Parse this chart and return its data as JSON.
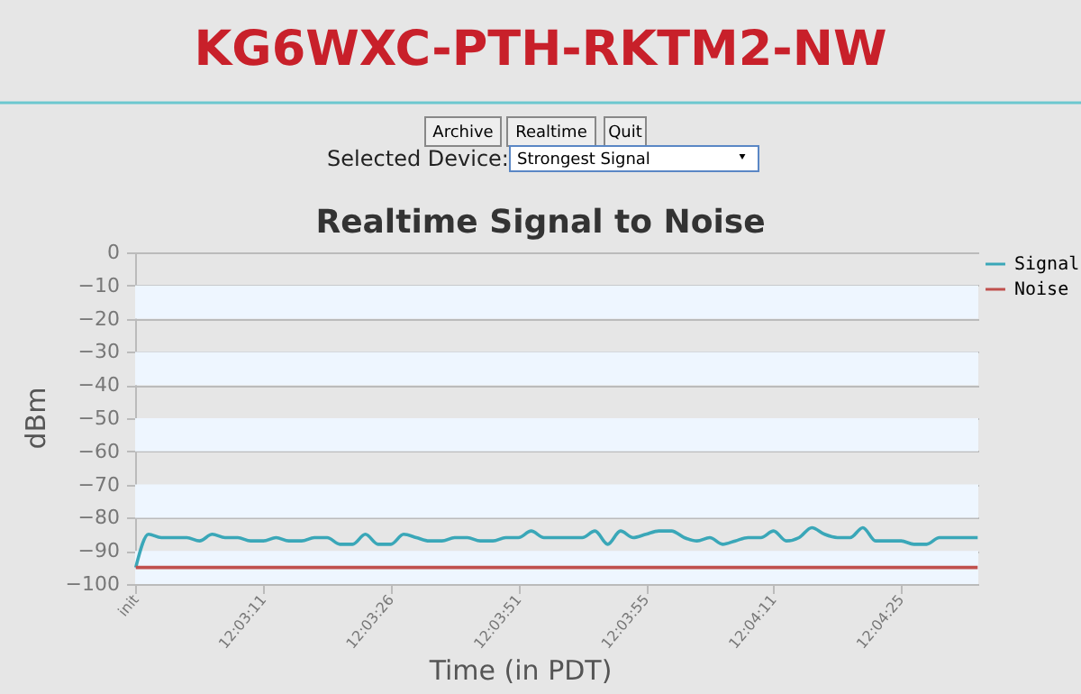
{
  "chart_data": {
    "type": "line",
    "title": "Realtime Signal to Noise",
    "xlabel": "Time (in PDT)",
    "ylabel": "dBm",
    "annotations": [
      "KG6WXC-PTH-RKTM2-NW",
      "Archive",
      "Realtime",
      "Quit",
      "Selected Device:",
      "Strongest Signal"
    ],
    "categories": [
      "init",
      null,
      null,
      null,
      null,
      null,
      null,
      null,
      null,
      null,
      "12:03:11",
      null,
      null,
      null,
      null,
      null,
      null,
      null,
      null,
      null,
      "12:03:26",
      null,
      null,
      null,
      null,
      null,
      null,
      null,
      null,
      null,
      "12:03:51",
      null,
      null,
      null,
      null,
      null,
      null,
      null,
      null,
      null,
      "12:03:55",
      null,
      null,
      null,
      null,
      null,
      null,
      null,
      null,
      null,
      "12:04:11",
      null,
      null,
      null,
      null,
      null,
      null,
      null,
      null,
      null,
      "12:04:25",
      null,
      null,
      null,
      null,
      null,
      null
    ],
    "series": [
      {
        "name": "Signal",
        "color": "#3aa7b8",
        "values": [
          -95,
          -85,
          -86,
          -86,
          -86,
          -87,
          -85,
          -86,
          -86,
          -87,
          -87,
          -86,
          -87,
          -87,
          -86,
          -86,
          -88,
          -88,
          -85,
          -88,
          -88,
          -85,
          -86,
          -87,
          -87,
          -86,
          -86,
          -87,
          -87,
          -86,
          -86,
          -84,
          -86,
          -86,
          -86,
          -86,
          -84,
          -88,
          -84,
          -86,
          -85,
          -84,
          -84,
          -86,
          -87,
          -86,
          -88,
          -87,
          -86,
          -86,
          -84,
          -87,
          -86,
          -83,
          -85,
          -86,
          -86,
          -83,
          -87,
          -87,
          -87,
          -88,
          -88,
          -86,
          -86,
          -86,
          -86
        ]
      },
      {
        "name": "Noise",
        "color": "#c0504d",
        "values": [
          -95,
          -95,
          -95,
          -95,
          -95,
          -95,
          -95,
          -95,
          -95,
          -95,
          -95,
          -95,
          -95,
          -95,
          -95,
          -95,
          -95,
          -95,
          -95,
          -95,
          -95,
          -95,
          -95,
          -95,
          -95,
          -95,
          -95,
          -95,
          -95,
          -95,
          -95,
          -95,
          -95,
          -95,
          -95,
          -95,
          -95,
          -95,
          -95,
          -95,
          -95,
          -95,
          -95,
          -95,
          -95,
          -95,
          -95,
          -95,
          -95,
          -95,
          -95,
          -95,
          -95,
          -95,
          -95,
          -95,
          -95,
          -95,
          -95,
          -95,
          -95,
          -95,
          -95,
          -95,
          -95,
          -95,
          -95
        ]
      }
    ],
    "ylim": [
      -100,
      0
    ],
    "yticks": [
      -100,
      -90,
      -80,
      -70,
      -60,
      -50,
      -40,
      -30,
      -20,
      -10,
      0
    ],
    "bands": [
      {
        "axis": "y",
        "from": -20,
        "to": -10,
        "color": "#eef6ff"
      },
      {
        "axis": "y",
        "from": -40,
        "to": -30,
        "color": "#eef6ff"
      },
      {
        "axis": "y",
        "from": -60,
        "to": -50,
        "color": "#eef6ff"
      },
      {
        "axis": "y",
        "from": -80,
        "to": -70,
        "color": "#eef6ff"
      },
      {
        "axis": "y",
        "from": -100,
        "to": -90,
        "color": "#eef6ff"
      }
    ],
    "grid": "y",
    "legend": "right",
    "marker": "none",
    "line_style": "solid"
  }
}
